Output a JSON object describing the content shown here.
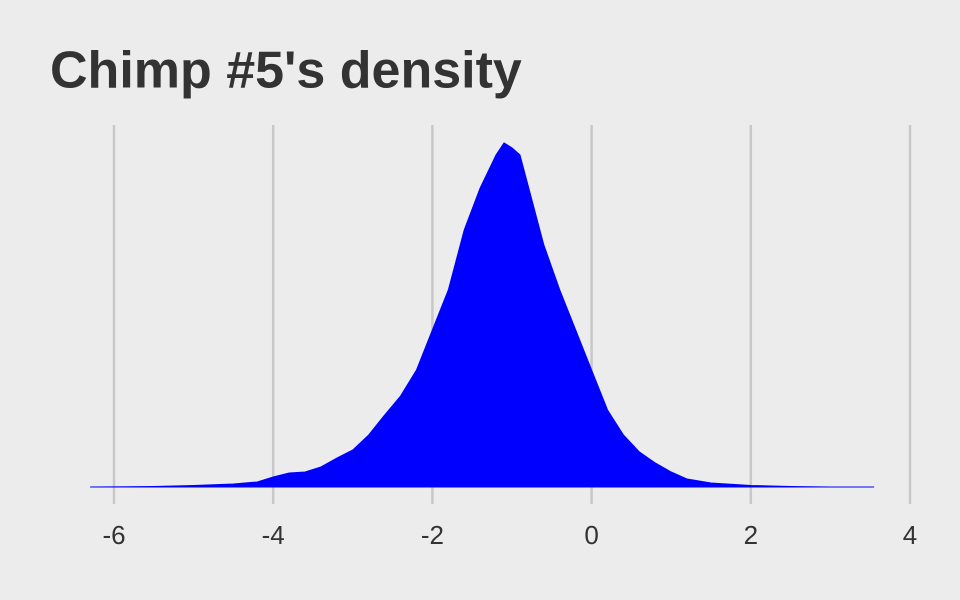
{
  "chart_data": {
    "type": "area",
    "title": "Chimp #5's density",
    "x": [
      -6.3,
      -5.5,
      -5,
      -4.5,
      -4.2,
      -4,
      -3.8,
      -3.6,
      -3.4,
      -3.2,
      -3.0,
      -2.8,
      -2.6,
      -2.4,
      -2.2,
      -2.0,
      -1.8,
      -1.6,
      -1.4,
      -1.2,
      -1.1,
      -1.0,
      -0.9,
      -0.8,
      -0.6,
      -0.4,
      -0.2,
      0,
      0.2,
      0.4,
      0.6,
      0.8,
      1.0,
      1.2,
      1.5,
      2.0,
      2.5,
      3.0,
      3.55
    ],
    "values": [
      0,
      0.0007,
      0.0022,
      0.0044,
      0.0073,
      0.0145,
      0.0203,
      0.0218,
      0.0291,
      0.0421,
      0.0538,
      0.0756,
      0.1046,
      0.1322,
      0.17,
      0.2282,
      0.2863,
      0.3735,
      0.4346,
      0.4826,
      0.5,
      0.4927,
      0.4826,
      0.439,
      0.3517,
      0.2863,
      0.2282,
      0.17,
      0.1119,
      0.0756,
      0.0509,
      0.0349,
      0.0218,
      0.0116,
      0.0058,
      0.0022,
      0.0007,
      0,
      0
    ],
    "color": "#0000ff",
    "xlim": [
      -6.5,
      4.5
    ],
    "xticks": [
      -6,
      -4,
      -2,
      0,
      2,
      4
    ],
    "ylim": [
      0,
      0.526
    ],
    "grid": true
  }
}
